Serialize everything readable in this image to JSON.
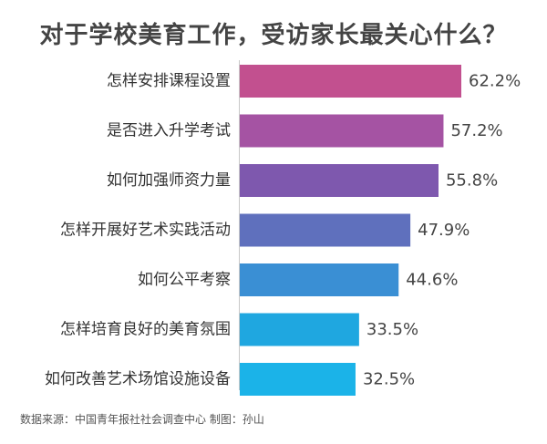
{
  "chart_data": {
    "type": "bar",
    "orientation": "horizontal",
    "title": "对于学校美育工作，受访家长最关心什么？",
    "categories": [
      "怎样安排课程设置",
      "是否进入升学考试",
      "如何加强师资力量",
      "怎样开展好艺术实践活动",
      "如何公平考察",
      "怎样培育良好的美育氛围",
      "如何改善艺术场馆设施设备"
    ],
    "values": [
      62.2,
      57.2,
      55.8,
      47.9,
      44.6,
      33.5,
      32.5
    ],
    "value_labels": [
      "62.2%",
      "57.2%",
      "55.8%",
      "47.9%",
      "44.6%",
      "33.5%",
      "32.5%"
    ],
    "unit": "%",
    "bar_colors": [
      "#c2508f",
      "#a553a3",
      "#7e58ae",
      "#5f70bd",
      "#3a8fd4",
      "#1fa7e0",
      "#1bb3e8"
    ],
    "xlim": [
      0,
      62.2
    ],
    "grid": false,
    "legend": "none",
    "source": "数据来源：中国青年报社社会调查中心 制图：孙山"
  }
}
